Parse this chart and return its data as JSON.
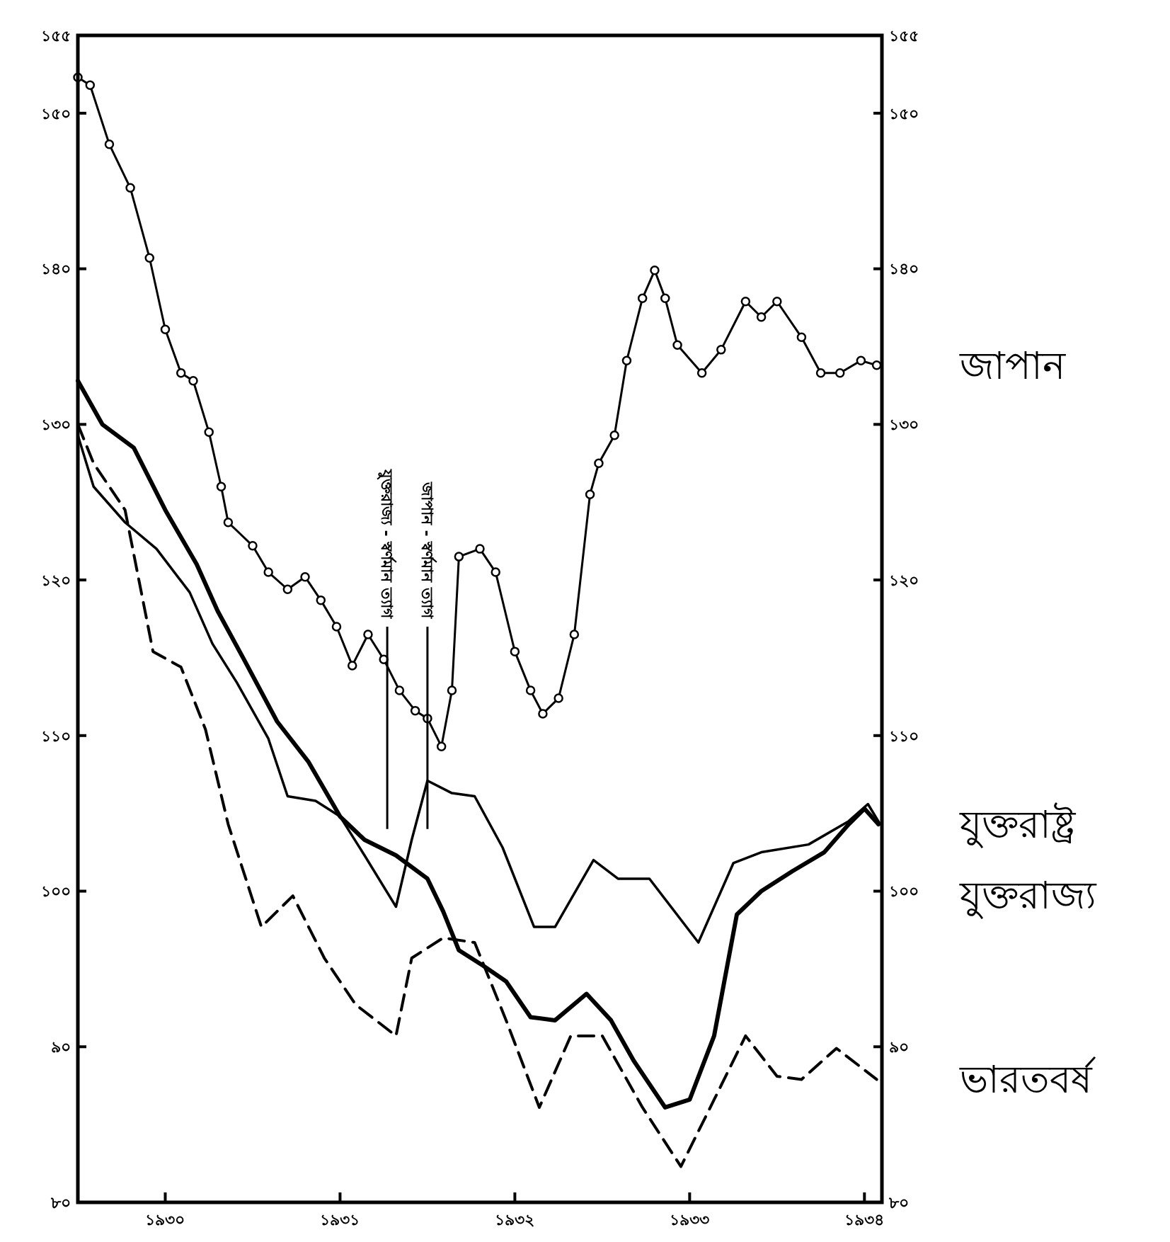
{
  "chart_data": {
    "type": "line",
    "xlim": [
      1930,
      1934.6
    ],
    "xticks": [
      {
        "value": 1930.5,
        "label": "১৯৩০"
      },
      {
        "value": 1931.5,
        "label": "১৯৩১"
      },
      {
        "value": 1932.5,
        "label": "১৯৩২"
      },
      {
        "value": 1933.5,
        "label": "১৯৩৩"
      },
      {
        "value": 1934.5,
        "label": "১৯৩৪"
      }
    ],
    "ylim": [
      80,
      155
    ],
    "yticks": [
      {
        "value": 80,
        "label": "৮০"
      },
      {
        "value": 90,
        "label": "৯০"
      },
      {
        "value": 100,
        "label": "১০০"
      },
      {
        "value": 110,
        "label": "১১০"
      },
      {
        "value": 120,
        "label": "১২০"
      },
      {
        "value": 130,
        "label": "১৩০"
      },
      {
        "value": 140,
        "label": "১৪০"
      },
      {
        "value": 150,
        "label": "১৫০"
      },
      {
        "value": 155,
        "label": "১৫৫"
      }
    ],
    "y2lim": [
      80,
      155
    ],
    "y2ticks": [
      {
        "value": 80,
        "label": "৮০"
      },
      {
        "value": 90,
        "label": "৯০"
      },
      {
        "value": 100,
        "label": "১০০"
      },
      {
        "value": 110,
        "label": "১১০"
      },
      {
        "value": 120,
        "label": "১২০"
      },
      {
        "value": 130,
        "label": "১৩০"
      },
      {
        "value": 140,
        "label": "১৪০"
      },
      {
        "value": 150,
        "label": "১৫০"
      },
      {
        "value": 155,
        "label": "১৫৫"
      }
    ],
    "ref_lines": [
      {
        "axis": "x",
        "value": 1931.77,
        "label": "যুক্তরাজ্য - স্বর্ণমান ত্যাগ",
        "color": "#000000"
      },
      {
        "axis": "x",
        "value": 1932.0,
        "label": "জাপান - স্বর্ণমান ত্যাগ",
        "color": "#000000"
      }
    ],
    "series": [
      {
        "name": "জাপান",
        "color": "#000000",
        "marker": "circle",
        "line_style": "solid",
        "x": [
          1930.0,
          1930.07,
          1930.18,
          1930.3,
          1930.41,
          1930.5,
          1930.59,
          1930.66,
          1930.75,
          1930.82,
          1930.86,
          1931.0,
          1931.09,
          1931.2,
          1931.3,
          1931.39,
          1931.48,
          1931.57,
          1931.66,
          1931.75,
          1931.84,
          1931.93,
          1932.0,
          1932.08,
          1932.14,
          1932.18,
          1932.3,
          1932.39,
          1932.5,
          1932.59,
          1932.66,
          1932.75,
          1932.84,
          1932.93,
          1932.98,
          1933.07,
          1933.14,
          1933.23,
          1933.3,
          1933.36,
          1933.43,
          1933.57,
          1933.68,
          1933.82,
          1933.91,
          1934.0,
          1934.14,
          1934.25,
          1934.36,
          1934.48,
          1934.57
        ],
        "values": [
          152.3,
          151.8,
          148,
          145.2,
          140.7,
          136.1,
          133.3,
          132.8,
          129.5,
          126,
          123.7,
          122.2,
          120.5,
          119.4,
          120.2,
          118.7,
          117,
          114.5,
          116.5,
          114.9,
          112.9,
          111.6,
          111.1,
          109.3,
          112.9,
          121.5,
          122,
          120.5,
          115.4,
          112.9,
          111.4,
          112.4,
          116.5,
          125.5,
          127.5,
          129.3,
          134.1,
          138.1,
          139.9,
          138.1,
          135.1,
          133.3,
          134.8,
          137.9,
          136.9,
          137.9,
          135.6,
          133.3,
          133.3,
          134.1,
          133.8
        ]
      },
      {
        "name": "যুক্তরাষ্ট্র",
        "color": "#000000",
        "marker": "none",
        "line_style": "solid",
        "x": [
          1930.0,
          1930.14,
          1930.32,
          1930.5,
          1930.68,
          1930.8,
          1930.95,
          1931.14,
          1931.32,
          1931.5,
          1931.64,
          1931.82,
          1932.0,
          1932.09,
          1932.18,
          1932.32,
          1932.45,
          1932.59,
          1932.73,
          1932.91,
          1933.05,
          1933.18,
          1933.36,
          1933.5,
          1933.64,
          1933.77,
          1933.91,
          1934.09,
          1934.27,
          1934.41,
          1934.5,
          1934.58
        ],
        "values": [
          132.8,
          130,
          128.5,
          124.5,
          121,
          118,
          114.9,
          110.9,
          108.3,
          104.8,
          103.3,
          102.3,
          100.8,
          98.7,
          96.2,
          95.2,
          94.2,
          91.9,
          91.7,
          93.4,
          91.7,
          89.1,
          86.1,
          86.6,
          90.7,
          98.5,
          100,
          101.3,
          102.5,
          104.3,
          105.3,
          104.3
        ]
      },
      {
        "name": "যুক্তরাজ্য",
        "color": "#000000",
        "marker": "none",
        "line_style": "solid",
        "x": [
          1930.0,
          1930.09,
          1930.27,
          1930.45,
          1930.64,
          1930.77,
          1930.91,
          1931.09,
          1931.2,
          1931.36,
          1931.5,
          1931.64,
          1931.82,
          1931.91,
          1932.0,
          1932.14,
          1932.27,
          1932.43,
          1932.61,
          1932.73,
          1932.95,
          1933.09,
          1933.27,
          1933.55,
          1933.75,
          1933.91,
          1934.18,
          1934.41,
          1934.52,
          1934.59
        ],
        "values": [
          129.3,
          126,
          123.7,
          122,
          119.2,
          115.9,
          113.4,
          109.8,
          106.1,
          105.8,
          104.8,
          102.3,
          99,
          103.3,
          107.1,
          106.3,
          106.1,
          102.8,
          97.7,
          97.7,
          102,
          100.8,
          100.8,
          96.7,
          101.8,
          102.5,
          103,
          104.5,
          105.6,
          104.3
        ]
      },
      {
        "name": "ভারতবর্ষ",
        "color": "#000000",
        "marker": "none",
        "line_style": "dashed",
        "x": [
          1930.0,
          1930.09,
          1930.27,
          1930.43,
          1930.59,
          1930.73,
          1930.86,
          1931.05,
          1931.23,
          1931.41,
          1931.59,
          1931.82,
          1931.91,
          1932.09,
          1932.27,
          1932.45,
          1932.64,
          1932.82,
          1933.0,
          1933.23,
          1933.45,
          1933.64,
          1933.82,
          1934.0,
          1934.14,
          1934.34,
          1934.57
        ],
        "values": [
          130,
          127.5,
          124.5,
          115.4,
          114.4,
          110.4,
          104.3,
          97.7,
          99.7,
          95.7,
          92.7,
          90.7,
          95.7,
          97,
          96.7,
          91.7,
          86.1,
          90.7,
          90.7,
          86.1,
          82.3,
          86.6,
          90.7,
          88.1,
          87.9,
          89.9,
          87.9
        ]
      }
    ]
  }
}
